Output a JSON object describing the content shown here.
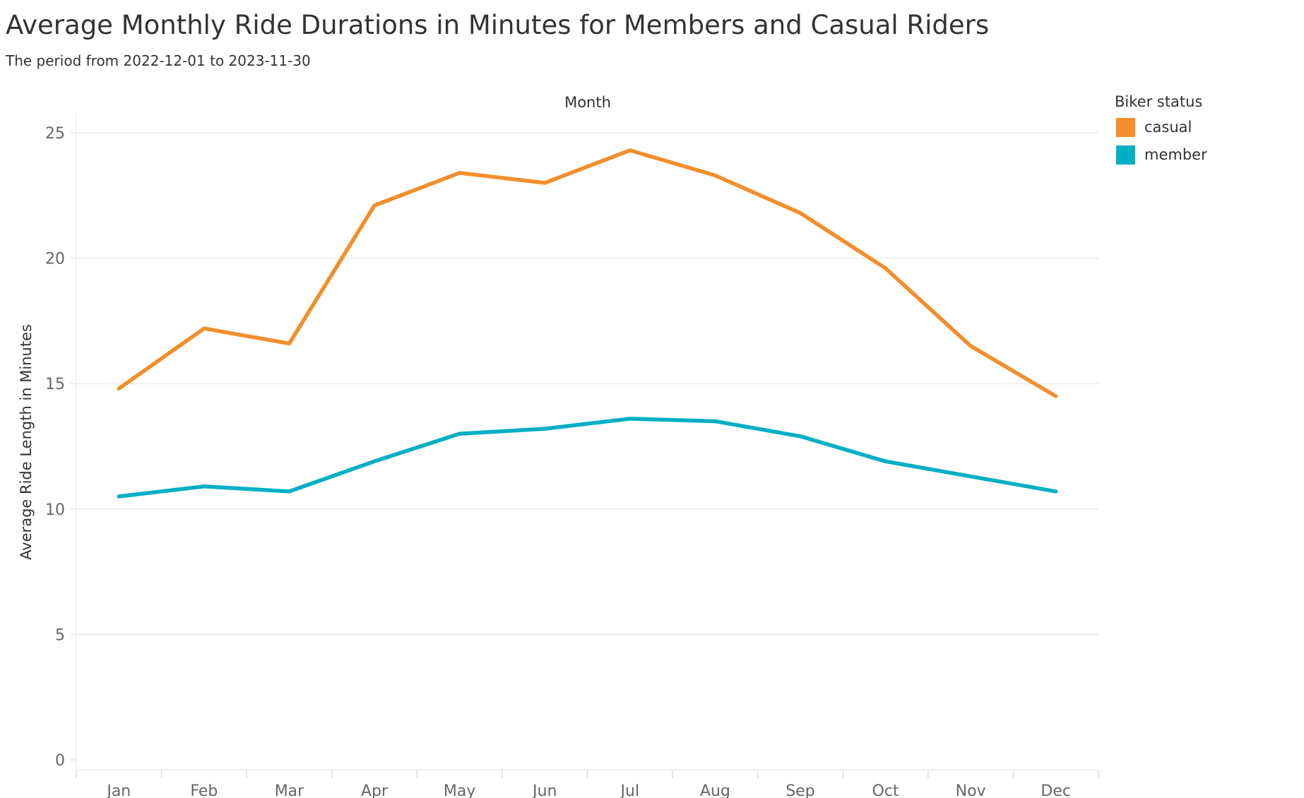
{
  "header": {
    "title": "Average Monthly Ride Durations in Minutes for Members and Casual Riders",
    "subtitle": "The period from 2022-12-01 to 2023-11-30"
  },
  "legend": {
    "title": "Biker status",
    "items": [
      {
        "label": "casual",
        "color": "#f28e2b"
      },
      {
        "label": "member",
        "color": "#00afc4"
      }
    ]
  },
  "chart_data": {
    "type": "line",
    "title": "Average Monthly Ride Durations in Minutes for Members and Casual Riders",
    "subtitle": "The period from 2022-12-01 to 2023-11-30",
    "xlabel": "Month",
    "ylabel": "Average Ride Length in Minutes",
    "categories": [
      "Jan",
      "Feb",
      "Mar",
      "Apr",
      "May",
      "Jun",
      "Jul",
      "Aug",
      "Sep",
      "Oct",
      "Nov",
      "Dec"
    ],
    "ylim": [
      0,
      25
    ],
    "yticks": [
      0,
      5,
      10,
      15,
      20,
      25
    ],
    "grid": true,
    "legend_position": "top-right",
    "series": [
      {
        "name": "casual",
        "color": "#f28e2b",
        "values": [
          14.8,
          17.2,
          16.6,
          22.1,
          23.4,
          23.0,
          24.3,
          23.3,
          21.8,
          19.6,
          16.5,
          14.5
        ]
      },
      {
        "name": "member",
        "color": "#00afc4",
        "values": [
          10.5,
          10.9,
          10.7,
          11.9,
          13.0,
          13.2,
          13.6,
          13.5,
          12.9,
          11.9,
          11.3,
          10.7
        ]
      }
    ]
  }
}
